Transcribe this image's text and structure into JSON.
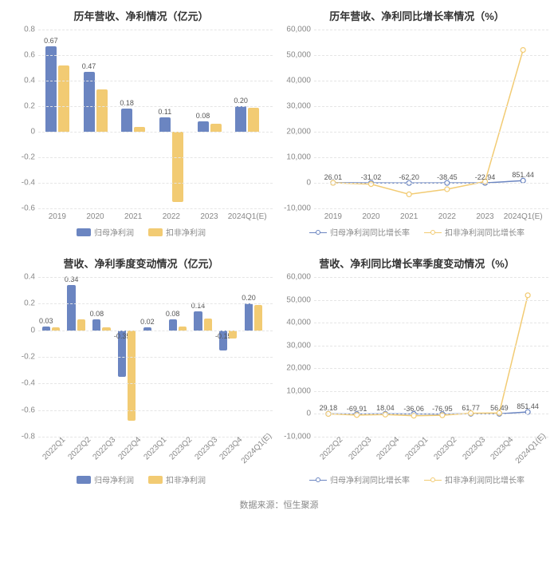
{
  "source_text": "数据来源：恒生聚源",
  "colors": {
    "bar1": "#6b85c1",
    "bar2": "#f2cb73",
    "line1": "#6b85c1",
    "line2": "#f2cb73",
    "grid": "#e5e5e5",
    "axis_text": "#888888",
    "text": "#555555"
  },
  "panels": [
    {
      "id": "p1",
      "title": "历年营收、净利情况（亿元）",
      "type": "bar",
      "categories": [
        "2019",
        "2020",
        "2021",
        "2022",
        "2023",
        "2024Q1(E)"
      ],
      "series": [
        {
          "name": "归母净利润",
          "color": "#6b85c1",
          "values": [
            0.67,
            0.47,
            0.18,
            0.11,
            0.08,
            0.2
          ],
          "labels": [
            "0.67",
            "0.47",
            "0.18",
            "0.11",
            "0.08",
            "0.20"
          ]
        },
        {
          "name": "扣非净利润",
          "color": "#f2cb73",
          "values": [
            0.52,
            0.33,
            0.04,
            -0.55,
            0.06,
            0.19
          ],
          "labels": [
            "",
            "",
            "",
            "",
            "",
            ""
          ]
        }
      ],
      "ymin": -0.6,
      "ymax": 0.8,
      "ystep": 0.2,
      "legend_type": "swatch",
      "rotate_x": false
    },
    {
      "id": "p2",
      "title": "历年营收、净利同比增长率情况（%）",
      "type": "line",
      "categories": [
        "2019",
        "2020",
        "2021",
        "2022",
        "2023",
        "2024Q1(E)"
      ],
      "series": [
        {
          "name": "归母净利润同比增长率",
          "color": "#6b85c1",
          "values": [
            26.01,
            -31.02,
            -62.2,
            -38.45,
            -22.94,
            851.44
          ],
          "labels": [
            "26.01",
            "-31.02",
            "-62.20",
            "-38.45",
            "-22.94",
            "851.44"
          ]
        },
        {
          "name": "扣非净利润同比增长率",
          "color": "#f2cb73",
          "values": [
            0,
            -500,
            -4500,
            -2500,
            500,
            52000
          ],
          "labels": [
            "",
            "",
            "",
            "",
            "",
            ""
          ]
        }
      ],
      "ymin": -10000,
      "ymax": 60000,
      "ystep": 10000,
      "legend_type": "line",
      "rotate_x": false
    },
    {
      "id": "p3",
      "title": "营收、净利季度变动情况（亿元）",
      "type": "bar",
      "categories": [
        "2022Q1",
        "2022Q2",
        "2022Q3",
        "2022Q4",
        "2023Q1",
        "2023Q2",
        "2023Q3",
        "2023Q4",
        "2024Q1(E)"
      ],
      "series": [
        {
          "name": "归母净利润",
          "color": "#6b85c1",
          "values": [
            0.03,
            0.34,
            0.08,
            -0.35,
            0.02,
            0.08,
            0.14,
            -0.15,
            0.2
          ],
          "labels": [
            "0.03",
            "0.34",
            "0.08",
            "-0.35",
            "0.02",
            "0.08",
            "0.14",
            "-0.15",
            "0.20"
          ]
        },
        {
          "name": "扣非净利润",
          "color": "#f2cb73",
          "values": [
            0.02,
            0.08,
            0.02,
            -0.68,
            0.0,
            0.03,
            0.09,
            -0.06,
            0.19
          ],
          "labels": [
            "",
            "",
            "",
            "",
            "",
            "",
            "",
            "",
            ""
          ]
        }
      ],
      "ymin": -0.8,
      "ymax": 0.4,
      "ystep": 0.2,
      "legend_type": "swatch",
      "rotate_x": true
    },
    {
      "id": "p4",
      "title": "营收、净利同比增长率季度变动情况（%）",
      "type": "line",
      "categories": [
        "2022Q2",
        "2022Q3",
        "2022Q4",
        "2023Q1",
        "2023Q2",
        "2023Q3",
        "2023Q4",
        "2024Q1(E)"
      ],
      "series": [
        {
          "name": "归母净利润同比增长率",
          "color": "#6b85c1",
          "values": [
            29.18,
            -69.91,
            18.04,
            -36.06,
            -76.95,
            61.77,
            56.49,
            851.44
          ],
          "labels": [
            "29.18",
            "-69.91",
            "18.04",
            "-36.06",
            "-76.95",
            "61.77",
            "56.49",
            "851.44"
          ]
        },
        {
          "name": "扣非净利润同比增长率",
          "color": "#f2cb73",
          "values": [
            0,
            -500,
            -300,
            -800,
            -600,
            300,
            400,
            52000
          ],
          "labels": [
            "",
            "",
            "",
            "",
            "",
            "",
            "",
            ""
          ]
        }
      ],
      "ymin": -10000,
      "ymax": 60000,
      "ystep": 10000,
      "legend_type": "line",
      "rotate_x": true
    }
  ]
}
